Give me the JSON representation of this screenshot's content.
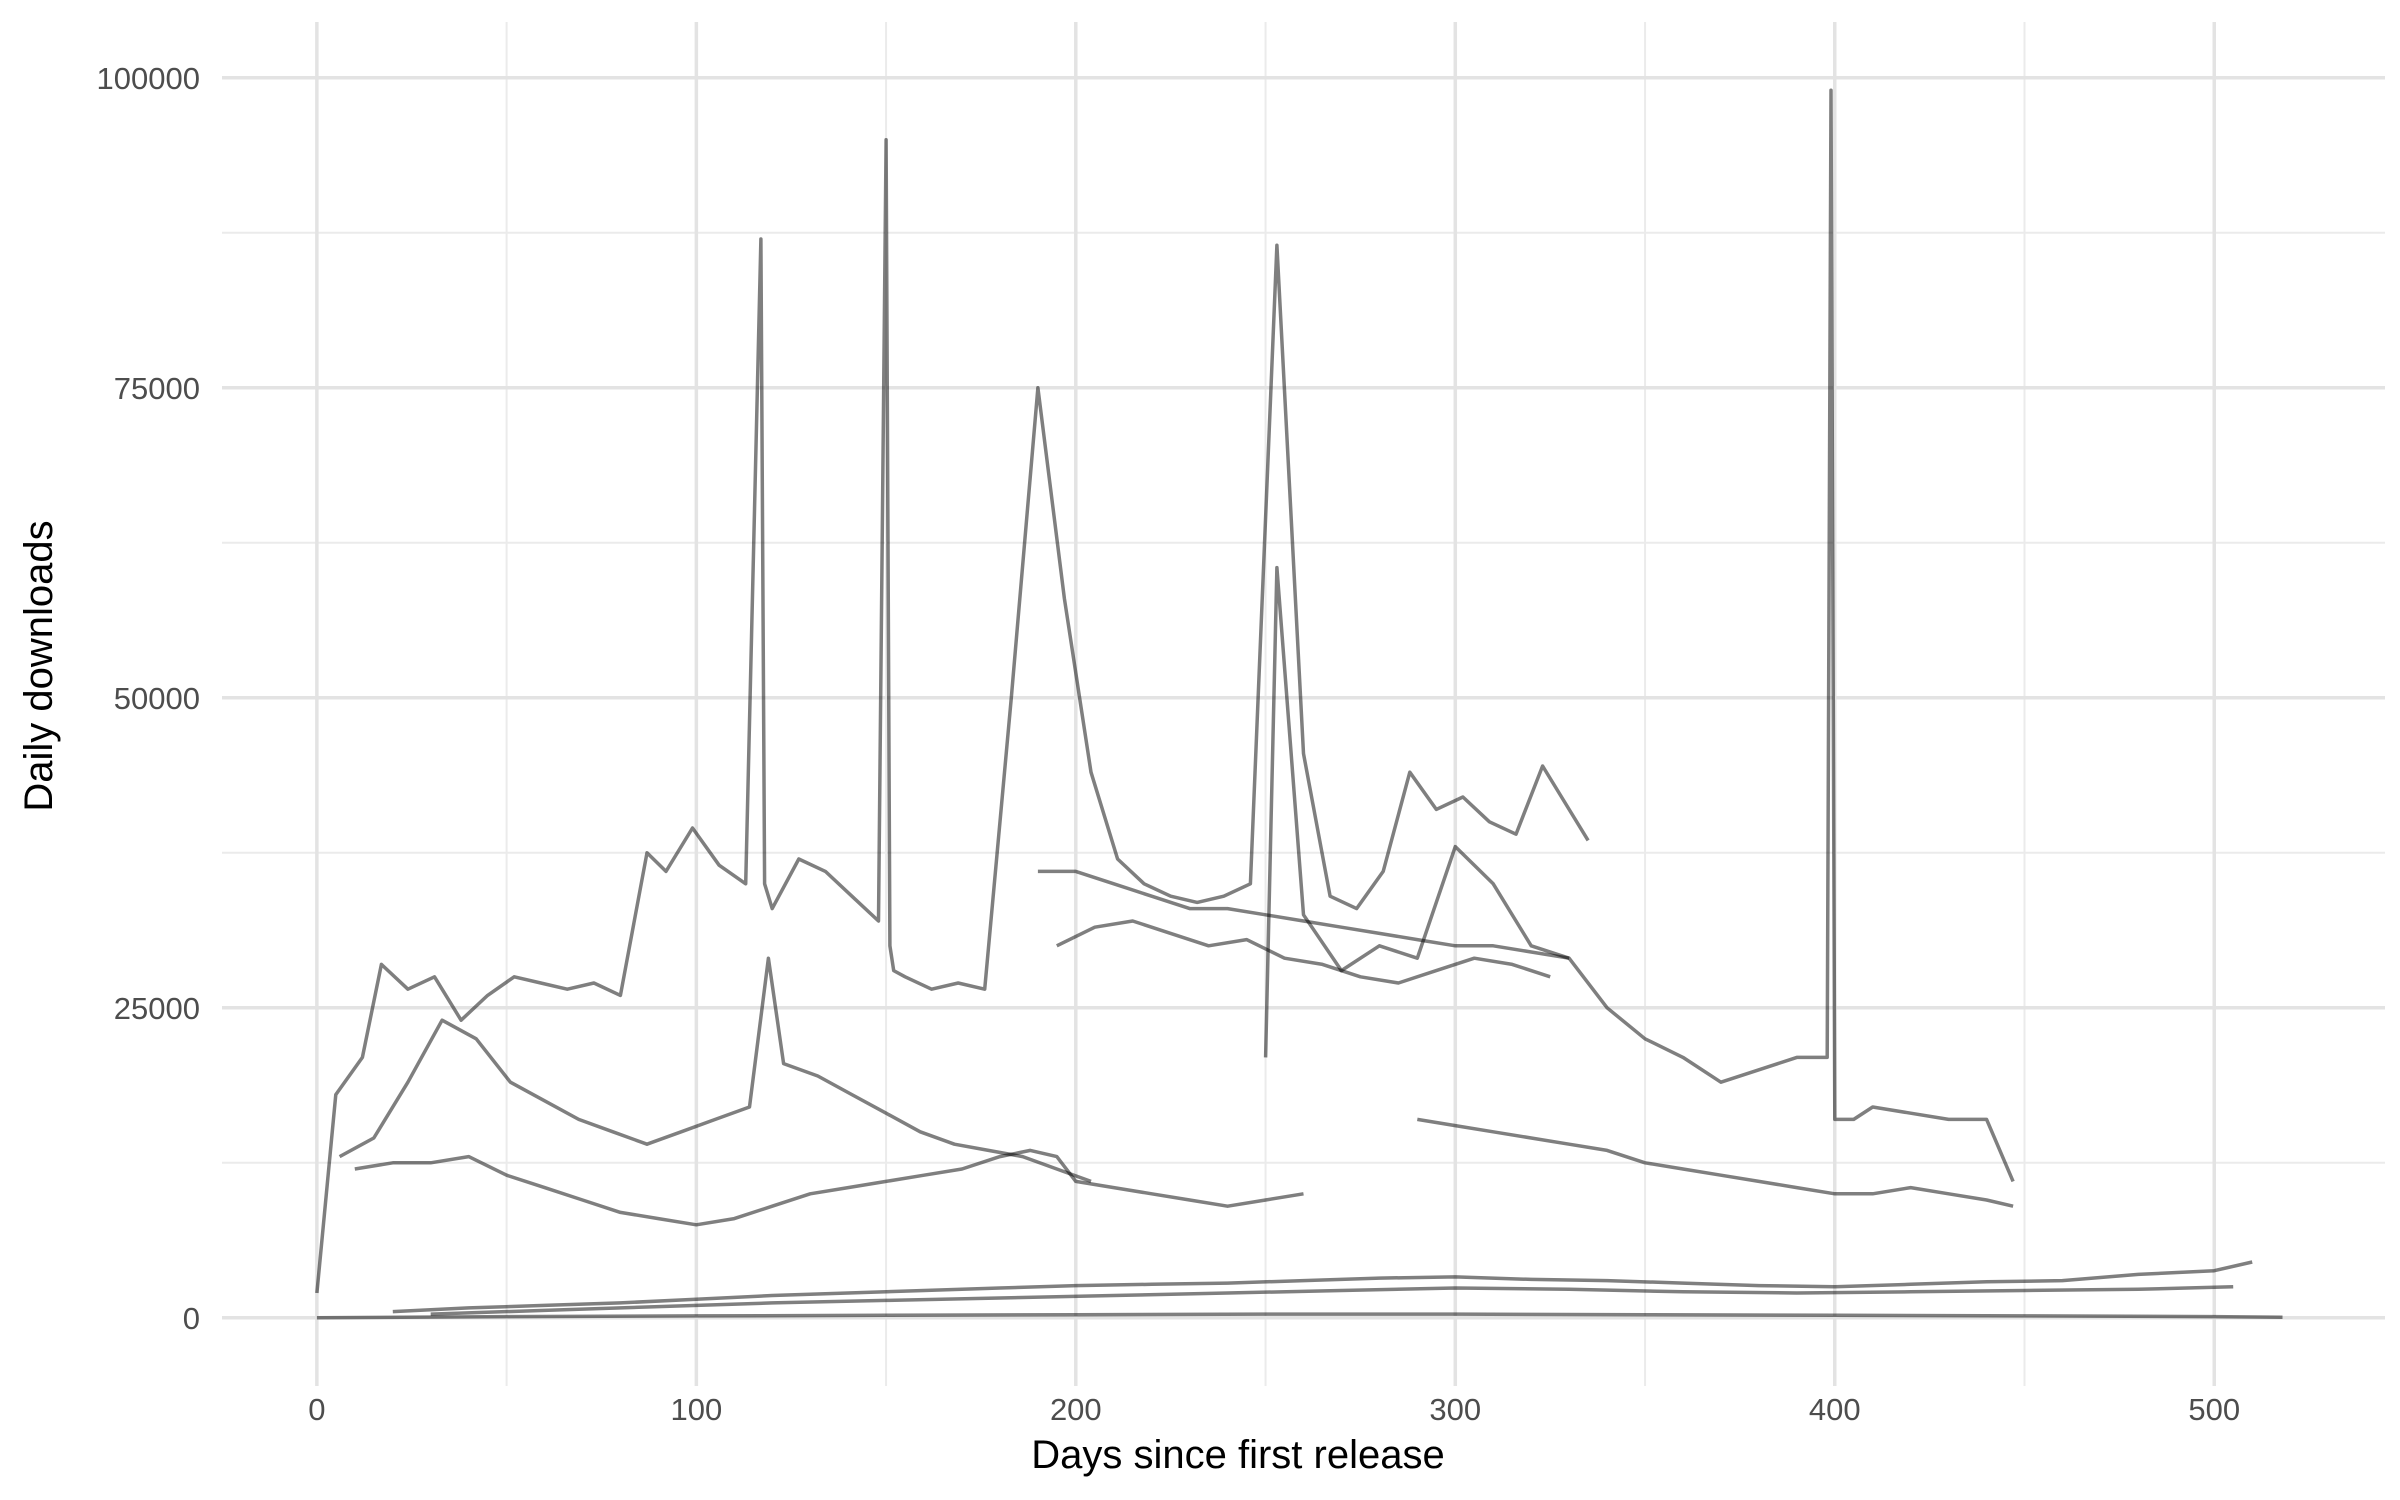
{
  "chart_data": {
    "type": "line",
    "title": "",
    "xlabel": "Days since first release",
    "ylabel": "Daily downloads",
    "xlim": [
      -25,
      545
    ],
    "ylim": [
      -5500,
      104500
    ],
    "x_ticks": [
      0,
      100,
      200,
      300,
      400,
      500
    ],
    "x_tick_labels": [
      "0",
      "100",
      "200",
      "300",
      "400",
      "500"
    ],
    "x_minor_ticks": [
      50,
      150,
      250,
      350,
      450
    ],
    "y_ticks": [
      0,
      25000,
      50000,
      75000,
      100000
    ],
    "y_tick_labels": [
      "0",
      "25000",
      "50000",
      "75000",
      "100000"
    ],
    "y_minor_ticks": [
      12500,
      37500,
      62500,
      87500
    ],
    "grid": true,
    "legend": "none",
    "line_color": "#000000",
    "line_opacity": 0.5,
    "series": [
      {
        "x": [
          0,
          5,
          12,
          17,
          24,
          31,
          38,
          45,
          52,
          59,
          66,
          73,
          80,
          87,
          92,
          99,
          106,
          113,
          117,
          118,
          120,
          127,
          134,
          141,
          148,
          150,
          151,
          152,
          155,
          162,
          169,
          176,
          183,
          190,
          197,
          204,
          211,
          218,
          225,
          232,
          239,
          246,
          253,
          260,
          267,
          274,
          281,
          288,
          295,
          302,
          309,
          316,
          323,
          330,
          335
        ],
        "y": [
          2000,
          18000,
          21000,
          28500,
          26500,
          27500,
          24000,
          26000,
          27500,
          27000,
          26500,
          27000,
          26000,
          37500,
          36000,
          39500,
          36500,
          35000,
          87000,
          35000,
          33000,
          37000,
          36000,
          34000,
          32000,
          95000,
          30000,
          28000,
          27500,
          26500,
          27000,
          26500,
          50000,
          75000,
          58000,
          44000,
          37000,
          35000,
          34000,
          33500,
          34000,
          35000,
          86500,
          45500,
          34000,
          33000,
          36000,
          44000,
          41000,
          42000,
          40000,
          39000,
          44500,
          41000,
          38500
        ]
      },
      {
        "x": [
          250,
          253,
          260,
          270,
          280,
          290,
          300,
          310,
          320,
          330,
          340,
          350,
          360,
          370,
          380,
          390,
          398,
          399,
          400,
          405,
          410,
          420,
          430,
          440,
          447
        ],
        "y": [
          21000,
          60500,
          32500,
          28000,
          30000,
          29000,
          38000,
          35000,
          30000,
          29000,
          25000,
          22500,
          21000,
          19000,
          20000,
          21000,
          21000,
          99000,
          16000,
          16000,
          17000,
          16500,
          16000,
          16000,
          11000
        ]
      },
      {
        "x": [
          6,
          15,
          24,
          33,
          42,
          51,
          60,
          69,
          78,
          87,
          96,
          105,
          114,
          119,
          123,
          132,
          141,
          150,
          159,
          168,
          177,
          186,
          195,
          204
        ],
        "y": [
          13000,
          14500,
          19000,
          24000,
          22500,
          19000,
          17500,
          16000,
          15000,
          14000,
          15000,
          16000,
          17000,
          29000,
          20500,
          19500,
          18000,
          16500,
          15000,
          14000,
          13500,
          13000,
          12000,
          11000
        ]
      },
      {
        "x": [
          10,
          20,
          30,
          40,
          50,
          60,
          70,
          80,
          90,
          100,
          110,
          120,
          130,
          140,
          150,
          160,
          170,
          180,
          188,
          195,
          200,
          210,
          220,
          230,
          240,
          250,
          260
        ],
        "y": [
          12000,
          12500,
          12500,
          13000,
          11500,
          10500,
          9500,
          8500,
          8000,
          7500,
          8000,
          9000,
          10000,
          10500,
          11000,
          11500,
          12000,
          13000,
          13500,
          13000,
          11000,
          10500,
          10000,
          9500,
          9000,
          9500,
          10000
        ]
      },
      {
        "x": [
          190,
          200,
          210,
          220,
          230,
          240,
          250,
          260,
          270,
          280,
          290,
          300,
          310,
          320,
          330
        ],
        "y": [
          36000,
          36000,
          35000,
          34000,
          33000,
          33000,
          32500,
          32000,
          31500,
          31000,
          30500,
          30000,
          30000,
          29500,
          29000
        ]
      },
      {
        "x": [
          195,
          205,
          215,
          225,
          235,
          245,
          255,
          265,
          275,
          285,
          295,
          305,
          315,
          325
        ],
        "y": [
          30000,
          31500,
          32000,
          31000,
          30000,
          30500,
          29000,
          28500,
          27500,
          27000,
          28000,
          29000,
          28500,
          27500
        ]
      },
      {
        "x": [
          290,
          300,
          310,
          320,
          330,
          340,
          350,
          360,
          370,
          380,
          390,
          400,
          410,
          420,
          430,
          440,
          447
        ],
        "y": [
          16000,
          15500,
          15000,
          14500,
          14000,
          13500,
          12500,
          12000,
          11500,
          11000,
          10500,
          10000,
          10000,
          10500,
          10000,
          9500,
          9000
        ]
      },
      {
        "x": [
          20,
          40,
          60,
          80,
          100,
          120,
          140,
          160,
          180,
          200,
          220,
          240,
          260,
          280,
          300,
          320,
          340,
          360,
          380,
          400,
          420,
          440,
          460,
          480,
          500,
          510
        ],
        "y": [
          500,
          800,
          1000,
          1200,
          1500,
          1800,
          2000,
          2200,
          2400,
          2600,
          2700,
          2800,
          3000,
          3200,
          3300,
          3100,
          3000,
          2800,
          2600,
          2500,
          2700,
          2900,
          3000,
          3500,
          3800,
          4500
        ]
      },
      {
        "x": [
          30,
          60,
          90,
          120,
          150,
          180,
          210,
          240,
          270,
          300,
          330,
          360,
          390,
          420,
          450,
          480,
          505
        ],
        "y": [
          300,
          600,
          900,
          1200,
          1400,
          1600,
          1800,
          2000,
          2200,
          2400,
          2300,
          2100,
          2000,
          2100,
          2200,
          2300,
          2500
        ]
      },
      {
        "x": [
          0,
          50,
          100,
          150,
          200,
          250,
          300,
          350,
          400,
          450,
          500,
          518
        ],
        "y": [
          0,
          100,
          150,
          200,
          250,
          300,
          300,
          250,
          200,
          150,
          100,
          50
        ]
      }
    ]
  }
}
